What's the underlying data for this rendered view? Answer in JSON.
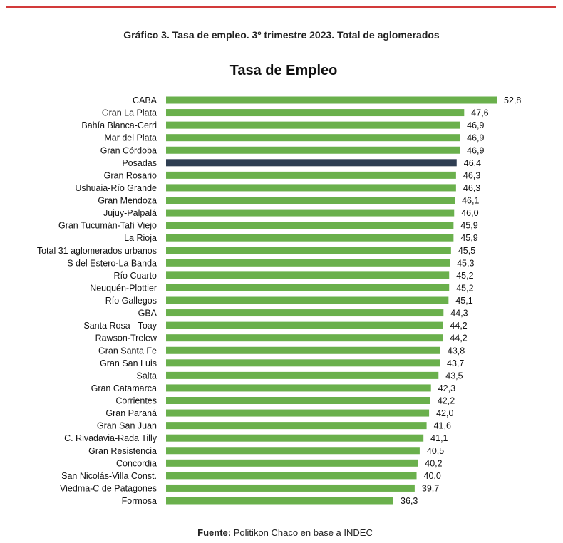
{
  "caption": "Gráfico 3. Tasa de empleo. 3º trimestre 2023. Total de aglomerados",
  "source": {
    "label": "Fuente:",
    "text": "Politikon Chaco en base a INDEC"
  },
  "colors": {
    "bar": "#6ab04c",
    "highlight": "#2f3e52",
    "rule": "#d23a3a"
  },
  "chart_data": {
    "type": "bar",
    "orientation": "horizontal",
    "title": "Tasa de Empleo",
    "xlabel": "",
    "ylabel": "",
    "xlim": [
      0,
      52.8
    ],
    "grid": false,
    "highlight": "Posadas",
    "categories": [
      "CABA",
      "Gran La Plata",
      "Bahía Blanca-Cerri",
      "Mar del Plata",
      "Gran Córdoba",
      "Posadas",
      "Gran Rosario",
      "Ushuaia-Río Grande",
      "Gran Mendoza",
      "Jujuy-Palpalá",
      "Gran Tucumán-Tafí Viejo",
      "La Rioja",
      "Total 31 aglomerados urbanos",
      "S del Estero-La Banda",
      "Río Cuarto",
      "Neuquén-Plottier",
      "Río Gallegos",
      "GBA",
      "Santa Rosa - Toay",
      "Rawson-Trelew",
      "Gran Santa Fe",
      "Gran San Luis",
      "Salta",
      "Gran Catamarca",
      "Corrientes",
      "Gran Paraná",
      "Gran San Juan",
      "C. Rivadavia-Rada Tilly",
      "Gran Resistencia",
      "Concordia",
      "San Nicolás-Villa Const.",
      "Viedma-C de Patagones",
      "Formosa"
    ],
    "values": [
      52.8,
      47.6,
      46.9,
      46.9,
      46.9,
      46.4,
      46.3,
      46.3,
      46.1,
      46.0,
      45.9,
      45.9,
      45.5,
      45.3,
      45.2,
      45.2,
      45.1,
      44.3,
      44.2,
      44.2,
      43.8,
      43.7,
      43.5,
      42.3,
      42.2,
      42.0,
      41.6,
      41.1,
      40.5,
      40.2,
      40.0,
      39.7,
      36.3
    ],
    "value_labels": [
      "52,8",
      "47,6",
      "46,9",
      "46,9",
      "46,9",
      "46,4",
      "46,3",
      "46,3",
      "46,1",
      "46,0",
      "45,9",
      "45,9",
      "45,5",
      "45,3",
      "45,2",
      "45,2",
      "45,1",
      "44,3",
      "44,2",
      "44,2",
      "43,8",
      "43,7",
      "43,5",
      "42,3",
      "42,2",
      "42,0",
      "41,6",
      "41,1",
      "40,5",
      "40,2",
      "40,0",
      "39,7",
      "36,3"
    ]
  }
}
